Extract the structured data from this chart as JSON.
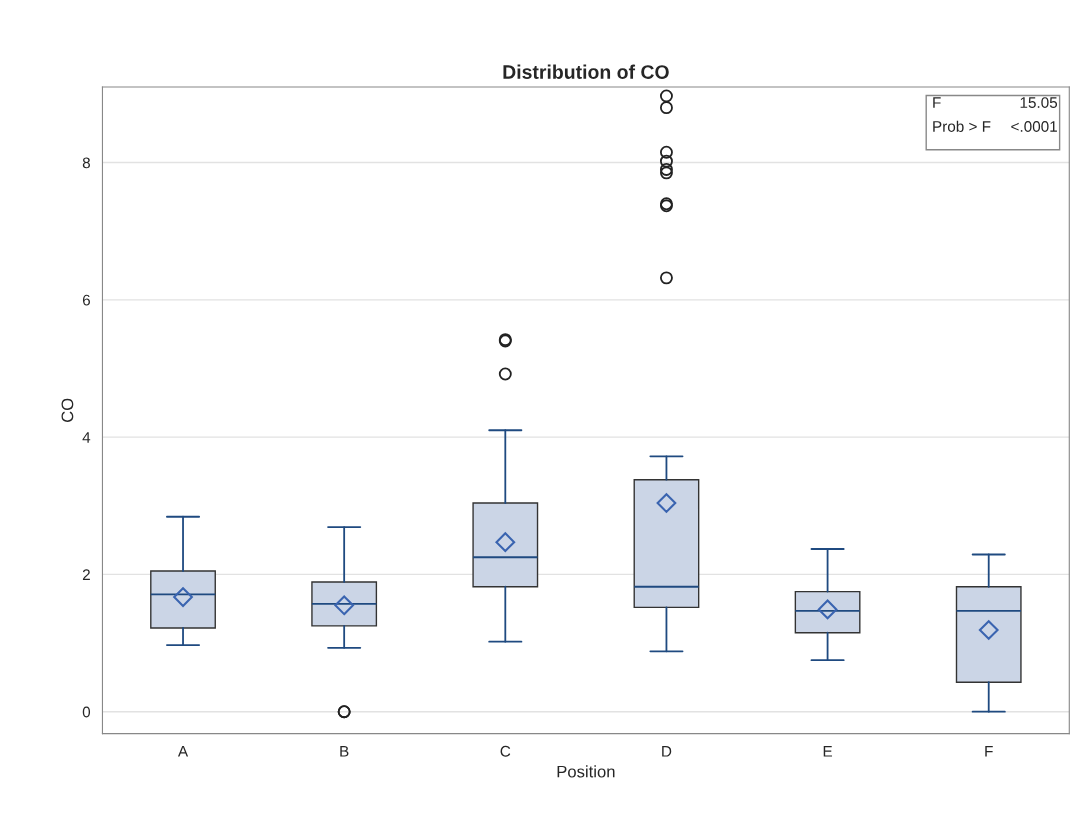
{
  "chart_data": {
    "type": "box",
    "title": "Distribution of CO",
    "xlabel": "Position",
    "ylabel": "CO",
    "categories": [
      "A",
      "B",
      "C",
      "D",
      "E",
      "F"
    ],
    "series": [
      {
        "color": "#cbd5e6",
        "boxes": [
          {
            "low": 0.97,
            "q1": 1.22,
            "median": 1.71,
            "q3": 2.05,
            "high": 2.84,
            "mean": 1.67
          },
          {
            "low": 0.93,
            "q1": 1.25,
            "median": 1.57,
            "q3": 1.89,
            "high": 2.69,
            "mean": 1.55,
            "outliers": [
              0,
              0
            ]
          },
          {
            "low": 1.02,
            "q1": 1.82,
            "median": 2.25,
            "q3": 3.04,
            "high": 4.1,
            "mean": 2.47,
            "outliers": [
              4.92,
              5.4,
              5.42
            ]
          },
          {
            "low": 0.88,
            "q1": 1.52,
            "median": 1.82,
            "q3": 3.38,
            "high": 3.72,
            "mean": 3.04,
            "outliers": [
              6.32,
              7.37,
              7.4,
              7.85,
              7.9,
              8.02,
              8.15,
              8.8,
              8.97
            ]
          },
          {
            "low": 0.75,
            "q1": 1.15,
            "median": 1.47,
            "q3": 1.75,
            "high": 2.37,
            "mean": 1.49
          },
          {
            "low": 0.0,
            "q1": 0.43,
            "median": 1.47,
            "q3": 1.82,
            "high": 2.29,
            "mean": 1.19
          }
        ]
      }
    ],
    "ylim": [
      -0.32,
      9.1
    ],
    "yticks": [
      0,
      2,
      4,
      6,
      8
    ],
    "grid": "y",
    "marker": "diamond",
    "annotations": [
      "F",
      "15.05",
      "Prob > F",
      "<.0001"
    ]
  }
}
